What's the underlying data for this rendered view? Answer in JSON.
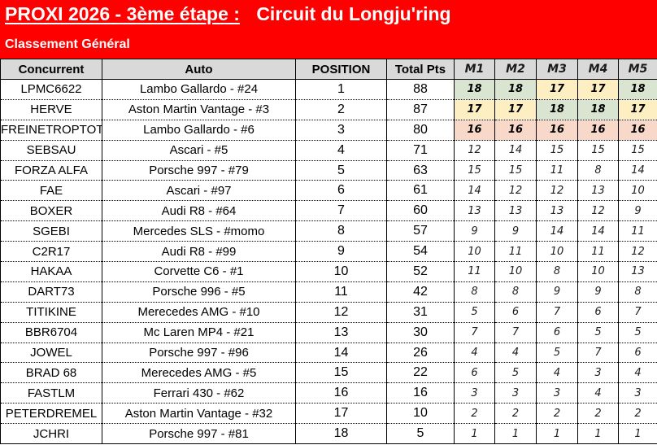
{
  "banner": {
    "title_underlined": "PROXI 2026 - 3ème étape :",
    "title_rest": "Circuit du Longju'ring",
    "subtitle": "Classement Général",
    "background": "#FF0000",
    "text_color": "#FFFFFF"
  },
  "table": {
    "headers": [
      "Concurrent",
      "Auto",
      "POSITION",
      "Total Pts",
      "M1",
      "M2",
      "M3",
      "M4",
      "M5"
    ],
    "header_bg": "#D9D9D9",
    "highlight_colors": {
      "18": "#D9E5D0",
      "17": "#FEEFC3",
      "16": "#F8D8C8"
    },
    "rows": [
      {
        "concurrent": "LPMC6622",
        "auto": "Lambo Gallardo - #24",
        "position": "1",
        "total": "88",
        "m": [
          18,
          18,
          17,
          17,
          18
        ]
      },
      {
        "concurrent": "HERVE",
        "auto": "Aston Martin Vantage - #3",
        "position": "2",
        "total": "87",
        "m": [
          17,
          17,
          18,
          18,
          17
        ]
      },
      {
        "concurrent": "FREINETROPTOT",
        "auto": "Lambo Gallardo - #6",
        "position": "3",
        "total": "80",
        "m": [
          16,
          16,
          16,
          16,
          16
        ]
      },
      {
        "concurrent": "SEBSAU",
        "auto": "Ascari - #5",
        "position": "4",
        "total": "71",
        "m": [
          12,
          14,
          15,
          15,
          15
        ]
      },
      {
        "concurrent": "FORZA ALFA",
        "auto": "Porsche 997 - #79",
        "position": "5",
        "total": "63",
        "m": [
          15,
          15,
          11,
          8,
          14
        ]
      },
      {
        "concurrent": "FAE",
        "auto": "Ascari - #97",
        "position": "6",
        "total": "61",
        "m": [
          14,
          12,
          12,
          13,
          10
        ]
      },
      {
        "concurrent": "BOXER",
        "auto": "Audi R8 - #64",
        "position": "7",
        "total": "60",
        "m": [
          13,
          13,
          13,
          12,
          9
        ]
      },
      {
        "concurrent": "SGEBI",
        "auto": "Mercedes SLS - #momo",
        "position": "8",
        "total": "57",
        "m": [
          9,
          9,
          14,
          14,
          11
        ]
      },
      {
        "concurrent": "C2R17",
        "auto": "Audi R8 - #99",
        "position": "9",
        "total": "54",
        "m": [
          10,
          11,
          10,
          11,
          12
        ]
      },
      {
        "concurrent": "HAKAA",
        "auto": "Corvette C6 - #1",
        "position": "10",
        "total": "52",
        "m": [
          11,
          10,
          8,
          10,
          13
        ]
      },
      {
        "concurrent": "DART73",
        "auto": "Porsche 996 - #5",
        "position": "11",
        "total": "42",
        "m": [
          8,
          8,
          9,
          9,
          8
        ]
      },
      {
        "concurrent": "TITIKINE",
        "auto": "Merecedes AMG - #10",
        "position": "12",
        "total": "31",
        "m": [
          5,
          6,
          7,
          6,
          7
        ]
      },
      {
        "concurrent": "BBR6704",
        "auto": "Mc Laren MP4 - #21",
        "position": "13",
        "total": "30",
        "m": [
          7,
          7,
          6,
          5,
          5
        ]
      },
      {
        "concurrent": "JOWEL",
        "auto": "Porsche 997 - #96",
        "position": "14",
        "total": "26",
        "m": [
          4,
          4,
          5,
          7,
          6
        ]
      },
      {
        "concurrent": "BRAD 68",
        "auto": "Merecedes AMG - #5",
        "position": "15",
        "total": "22",
        "m": [
          6,
          5,
          4,
          3,
          4
        ]
      },
      {
        "concurrent": "FASTLM",
        "auto": "Ferrari 430 - #62",
        "position": "16",
        "total": "16",
        "m": [
          3,
          3,
          3,
          4,
          3
        ]
      },
      {
        "concurrent": "PETERDREMEL",
        "auto": "Aston Martin Vantage - #32",
        "position": "17",
        "total": "10",
        "m": [
          2,
          2,
          2,
          2,
          2
        ]
      },
      {
        "concurrent": "JCHRI",
        "auto": "Porsche 997 - #81",
        "position": "18",
        "total": "5",
        "m": [
          1,
          1,
          1,
          1,
          1
        ]
      }
    ]
  }
}
